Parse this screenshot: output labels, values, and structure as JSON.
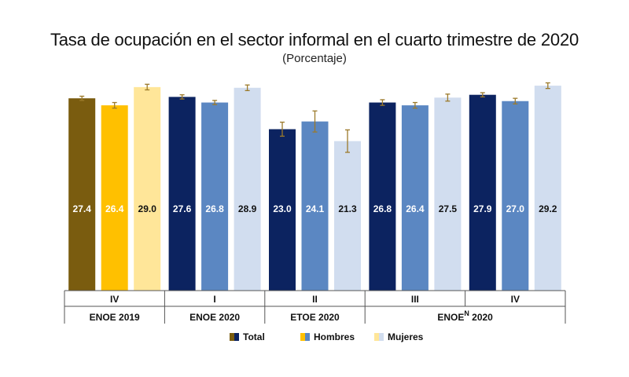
{
  "title": "Tasa de ocupación en el sector informal en el cuarto trimestre de 2020",
  "subtitle": "(Porcentaje)",
  "chart_data": {
    "type": "bar",
    "groups": [
      {
        "quarter": "IV",
        "survey": "ENOE 2019",
        "palette": "brown",
        "values": [
          27.4,
          26.4,
          29.0
        ],
        "errors": [
          0.3,
          0.4,
          0.4
        ]
      },
      {
        "quarter": "I",
        "survey": "ENOE 2020",
        "palette": "blue",
        "values": [
          27.6,
          26.8,
          28.9
        ],
        "errors": [
          0.3,
          0.3,
          0.4
        ]
      },
      {
        "quarter": "II",
        "survey": "ETOE 2020",
        "palette": "blue",
        "values": [
          23.0,
          24.1,
          21.3
        ],
        "errors": [
          1.0,
          1.5,
          1.6
        ]
      },
      {
        "quarter": "III",
        "survey": "ENOE",
        "palette": "blue",
        "values": [
          26.8,
          26.4,
          27.5
        ],
        "errors": [
          0.4,
          0.4,
          0.5
        ]
      },
      {
        "quarter": "IV",
        "survey": "ENOE",
        "palette": "blue",
        "values": [
          27.9,
          27.0,
          29.2
        ],
        "errors": [
          0.3,
          0.4,
          0.4
        ]
      }
    ],
    "survey_spans": [
      {
        "label": "ENOE 2019",
        "from": 0,
        "to": 0
      },
      {
        "label": "ENOE 2020",
        "from": 1,
        "to": 1
      },
      {
        "label": "ETOE 2020",
        "from": 2,
        "to": 2
      },
      {
        "label": "ENOE",
        "sup": "N",
        "suffix": " 2020",
        "from": 3,
        "to": 4
      }
    ],
    "legend": [
      "Total",
      "Hombres",
      "Mujeres"
    ],
    "legend_placement": "bottom",
    "ylim": [
      0,
      31
    ],
    "grid": false,
    "colors": {
      "brown": [
        "#7a5c0f",
        "#ffc000",
        "#ffe699"
      ],
      "blue": [
        "#0c2360",
        "#5b87c2",
        "#d1ddef"
      ],
      "error_bar": "#9c7a2a",
      "value_label_dark": "#ffffff",
      "value_label_light": "#111111"
    }
  }
}
